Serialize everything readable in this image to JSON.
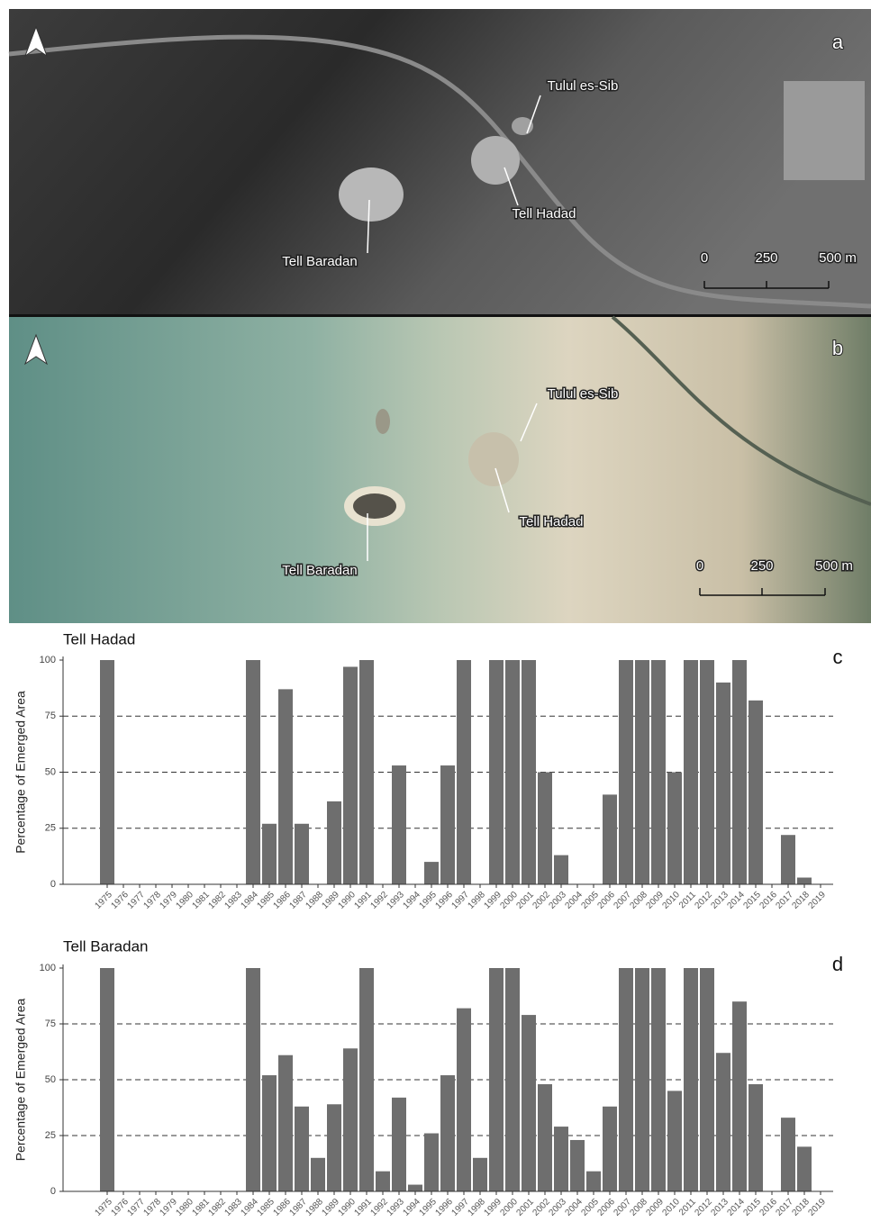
{
  "maps": [
    {
      "panel": "a",
      "sites": [
        {
          "label": "Tulul es-Sib"
        },
        {
          "label": "Tell Hadad"
        },
        {
          "label": "Tell Baradan"
        }
      ],
      "scale": [
        "0",
        "250",
        "500 m"
      ]
    },
    {
      "panel": "b",
      "sites": [
        {
          "label": "Tulul es-Sib"
        },
        {
          "label": "Tell Hadad"
        },
        {
          "label": "Tell Baradan"
        }
      ],
      "scale": [
        "0",
        "250",
        "500 m"
      ]
    }
  ],
  "chart_data": [
    {
      "type": "bar",
      "title": "Tell Hadad",
      "panel": "c",
      "y_label": "Percentage of Emerged Area",
      "color": "#6e6e6e",
      "categories": [
        "1975",
        "1976",
        "1977",
        "1978",
        "1979",
        "1980",
        "1981",
        "1982",
        "1983",
        "1984",
        "1985",
        "1986",
        "1987",
        "1988",
        "1989",
        "1990",
        "1991",
        "1992",
        "1993",
        "1994",
        "1995",
        "1996",
        "1997",
        "1998",
        "1999",
        "2000",
        "2001",
        "2002",
        "2003",
        "2004",
        "2005",
        "2006",
        "2007",
        "2008",
        "2009",
        "2010",
        "2011",
        "2012",
        "2013",
        "2014",
        "2015",
        "2016",
        "2017",
        "2018",
        "2019"
      ],
      "values": [
        100,
        0,
        0,
        0,
        0,
        0,
        0,
        0,
        0,
        100,
        27,
        87,
        27,
        0,
        37,
        97,
        100,
        0,
        53,
        0,
        10,
        53,
        100,
        0,
        100,
        100,
        100,
        50,
        13,
        0,
        0,
        40,
        100,
        100,
        100,
        50,
        100,
        100,
        90,
        100,
        82,
        0,
        22,
        3,
        0
      ],
      "ylim": [
        0,
        100
      ],
      "yticks": [
        0,
        25,
        50,
        75,
        100
      ],
      "grid": "dashed"
    },
    {
      "type": "bar",
      "title": "Tell Baradan",
      "panel": "d",
      "y_label": "Percentage of Emerged Area",
      "color": "#6e6e6e",
      "categories": [
        "1975",
        "1976",
        "1977",
        "1978",
        "1979",
        "1980",
        "1981",
        "1982",
        "1983",
        "1984",
        "1985",
        "1986",
        "1987",
        "1988",
        "1989",
        "1990",
        "1991",
        "1992",
        "1993",
        "1994",
        "1995",
        "1996",
        "1997",
        "1998",
        "1999",
        "2000",
        "2001",
        "2002",
        "2003",
        "2004",
        "2005",
        "2006",
        "2007",
        "2008",
        "2009",
        "2010",
        "2011",
        "2012",
        "2013",
        "2014",
        "2015",
        "2016",
        "2017",
        "2018",
        "2019"
      ],
      "values": [
        100,
        0,
        0,
        0,
        0,
        0,
        0,
        0,
        0,
        100,
        52,
        61,
        38,
        15,
        39,
        64,
        100,
        9,
        42,
        3,
        26,
        52,
        82,
        15,
        100,
        100,
        79,
        48,
        29,
        23,
        9,
        38,
        100,
        100,
        100,
        45,
        100,
        100,
        62,
        85,
        48,
        0,
        33,
        20,
        0
      ],
      "ylim": [
        0,
        100
      ],
      "yticks": [
        0,
        25,
        50,
        75,
        100
      ],
      "grid": "dashed"
    }
  ]
}
